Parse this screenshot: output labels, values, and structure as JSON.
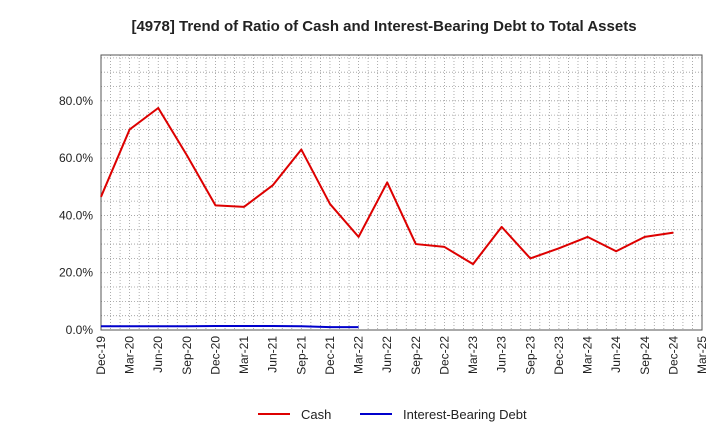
{
  "chart_data": {
    "type": "line",
    "title": "[4978]  Trend of Ratio of Cash and Interest-Bearing Debt to Total Assets",
    "xlabel": "",
    "ylabel": "",
    "ylim": [
      0,
      96
    ],
    "y_ticks": [
      {
        "value": 0,
        "label": "0.0%"
      },
      {
        "value": 20,
        "label": "20.0%"
      },
      {
        "value": 40,
        "label": "40.0%"
      },
      {
        "value": 60,
        "label": "60.0%"
      },
      {
        "value": 80,
        "label": "80.0%"
      }
    ],
    "categories": [
      "Dec-19",
      "Mar-20",
      "Jun-20",
      "Sep-20",
      "Dec-20",
      "Mar-21",
      "Jun-21",
      "Sep-21",
      "Dec-21",
      "Mar-22",
      "Jun-22",
      "Sep-22",
      "Dec-22",
      "Mar-23",
      "Jun-23",
      "Sep-23",
      "Dec-23",
      "Mar-24",
      "Jun-24",
      "Sep-24",
      "Dec-24",
      "Mar-25"
    ],
    "series": [
      {
        "name": "Cash",
        "color": "#dd0000",
        "values": [
          46.5,
          70.0,
          77.5,
          61.0,
          43.5,
          43.0,
          50.5,
          63.0,
          44.0,
          32.5,
          51.5,
          30.0,
          29.0,
          23.0,
          36.0,
          25.0,
          28.5,
          32.5,
          27.5,
          32.5,
          34.0,
          null
        ]
      },
      {
        "name": "Interest-Bearing Debt",
        "color": "#0000cc",
        "values": [
          1.3,
          1.3,
          1.3,
          1.3,
          1.4,
          1.4,
          1.4,
          1.3,
          1.0,
          1.0,
          null,
          null,
          null,
          null,
          null,
          null,
          null,
          null,
          null,
          null,
          null,
          null
        ]
      }
    ],
    "legend": "bottom-center",
    "grid": true
  }
}
